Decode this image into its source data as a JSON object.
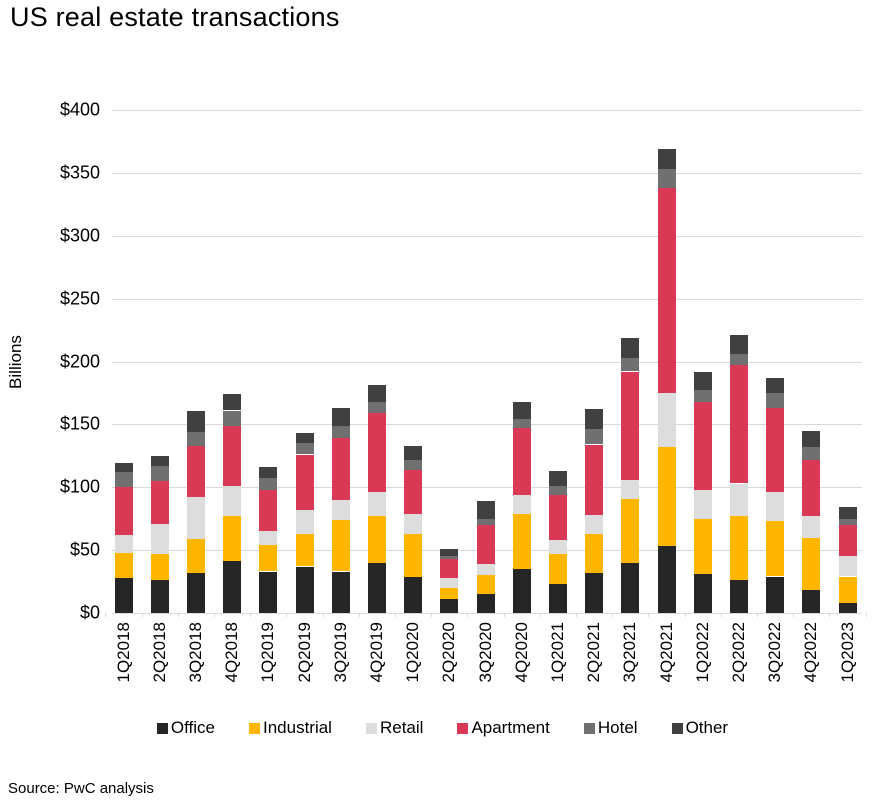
{
  "title": "US real estate transactions",
  "source": "Source: PwC analysis",
  "chart_data": {
    "type": "bar",
    "stacked": true,
    "title": "US real estate transactions",
    "xlabel": "",
    "ylabel": "Billions",
    "ylim": [
      0,
      400
    ],
    "ytick_step": 50,
    "ytick_prefix": "$",
    "grid": true,
    "legend_position": "bottom",
    "units": "USD billions",
    "categories": [
      "1Q2018",
      "2Q2018",
      "3Q2018",
      "4Q2018",
      "1Q2019",
      "2Q2019",
      "3Q2019",
      "4Q2019",
      "1Q2020",
      "2Q2020",
      "3Q2020",
      "4Q2020",
      "1Q2021",
      "2Q2021",
      "3Q2021",
      "4Q2021",
      "1Q2022",
      "2Q2022",
      "3Q2022",
      "4Q2022",
      "1Q2023"
    ],
    "series": [
      {
        "name": "Office",
        "color": "#262626",
        "values": [
          28,
          26,
          32,
          41,
          33,
          37,
          33,
          40,
          29,
          11,
          15,
          35,
          23,
          32,
          40,
          53,
          31,
          26,
          29,
          18,
          8
        ]
      },
      {
        "name": "Industrial",
        "color": "#FFB600",
        "values": [
          20,
          21,
          27,
          36,
          21,
          26,
          41,
          37,
          34,
          9,
          15,
          44,
          24,
          31,
          51,
          79,
          44,
          51,
          44,
          42,
          21
        ]
      },
      {
        "name": "Retail",
        "color": "#DDDDDD",
        "values": [
          14,
          24,
          33,
          24,
          11,
          19,
          16,
          19,
          16,
          8,
          9,
          15,
          11,
          15,
          15,
          43,
          23,
          26,
          23,
          17,
          16
        ]
      },
      {
        "name": "Apartment",
        "color": "#D93954",
        "values": [
          38,
          34,
          41,
          48,
          33,
          44,
          49,
          63,
          35,
          15,
          31,
          53,
          36,
          56,
          86,
          163,
          70,
          94,
          67,
          45,
          25
        ]
      },
      {
        "name": "Hotel",
        "color": "#707070",
        "values": [
          12,
          12,
          11,
          12,
          9,
          9,
          10,
          9,
          8,
          2,
          5,
          7,
          7,
          12,
          11,
          15,
          9,
          9,
          12,
          10,
          5
        ]
      },
      {
        "name": "Other",
        "color": "#404040",
        "values": [
          7,
          8,
          17,
          13,
          9,
          8,
          14,
          13,
          11,
          6,
          14,
          14,
          12,
          16,
          16,
          16,
          15,
          15,
          12,
          13,
          9
        ]
      }
    ]
  }
}
